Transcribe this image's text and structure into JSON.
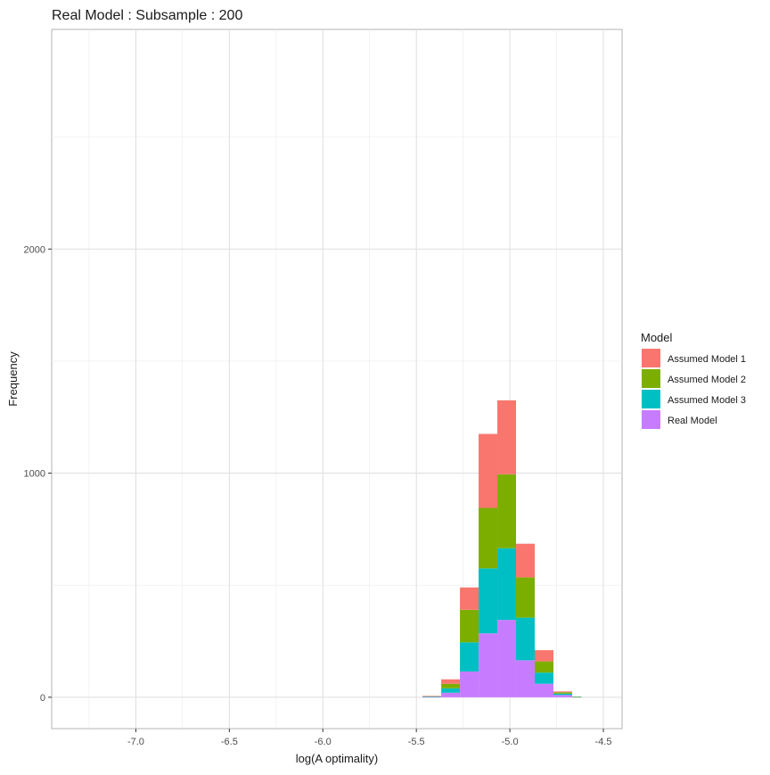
{
  "chart_data": {
    "type": "bar",
    "stacked": true,
    "title": "Real Model : Subsample : 200",
    "xlabel": "log(A optimality)",
    "ylabel": "Frequency",
    "xlim": [
      -7.45,
      -4.4
    ],
    "ylim": [
      -140,
      2980
    ],
    "x_ticks": [
      -7.0,
      -6.5,
      -6.0,
      -5.5,
      -5.0,
      -4.5
    ],
    "x_tick_labels": [
      "-7.0",
      "-6.5",
      "-6.0",
      "-5.5",
      "-5.0",
      "-4.5"
    ],
    "y_ticks": [
      0,
      1000,
      2000
    ],
    "y_tick_labels": [
      "0",
      "1000",
      "2000"
    ],
    "grid": true,
    "legend": {
      "title": "Model",
      "position": "right"
    },
    "bin_edges": [
      -5.467,
      -5.367,
      -5.267,
      -5.167,
      -5.067,
      -4.967,
      -4.867,
      -4.767,
      -4.667,
      -4.617
    ],
    "series": [
      {
        "name": "Assumed Model 1",
        "color": "#F8766D",
        "values": [
          1,
          20,
          100,
          330,
          330,
          150,
          50,
          4,
          0
        ]
      },
      {
        "name": "Assumed Model 2",
        "color": "#7CAE00",
        "values": [
          2,
          20,
          145,
          270,
          330,
          180,
          50,
          6,
          1
        ]
      },
      {
        "name": "Assumed Model 3",
        "color": "#00BFC4",
        "values": [
          2,
          20,
          130,
          290,
          320,
          190,
          50,
          6,
          1
        ]
      },
      {
        "name": "Real Model",
        "color": "#C77CFF",
        "values": [
          1,
          20,
          115,
          285,
          345,
          165,
          60,
          10,
          1
        ]
      }
    ]
  }
}
